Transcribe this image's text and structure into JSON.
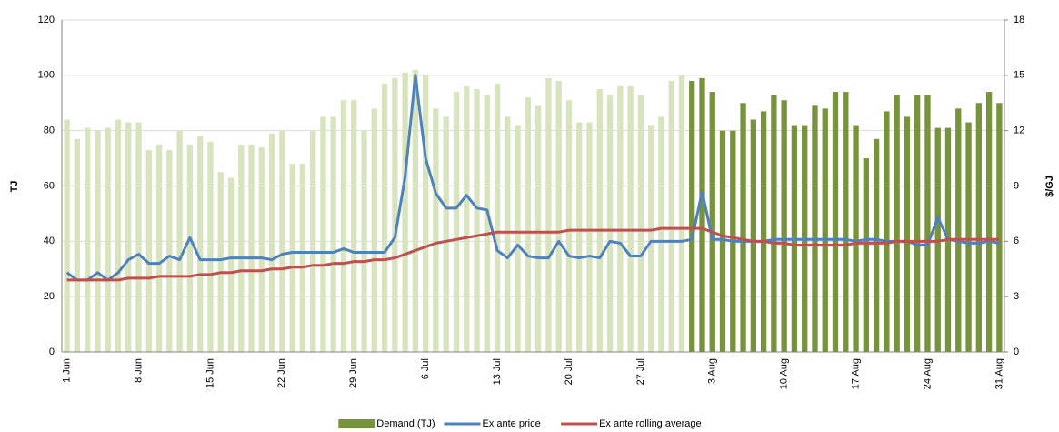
{
  "chart_data": {
    "type": "bar_line",
    "categories": [
      "1 Jun",
      null,
      null,
      null,
      null,
      null,
      null,
      "8 Jun",
      null,
      null,
      null,
      null,
      null,
      null,
      "15 Jun",
      null,
      null,
      null,
      null,
      null,
      null,
      "22 Jun",
      null,
      null,
      null,
      null,
      null,
      null,
      "29 Jun",
      null,
      null,
      null,
      null,
      null,
      null,
      "6 Jul",
      null,
      null,
      null,
      null,
      null,
      null,
      "13 Jul",
      null,
      null,
      null,
      null,
      null,
      null,
      "20 Jul",
      null,
      null,
      null,
      null,
      null,
      null,
      "27 Jul",
      null,
      null,
      null,
      null,
      null,
      null,
      "3 Aug",
      null,
      null,
      null,
      null,
      null,
      null,
      "10 Aug",
      null,
      null,
      null,
      null,
      null,
      null,
      "17 Aug",
      null,
      null,
      null,
      null,
      null,
      null,
      "24 Aug",
      null,
      null,
      null,
      null,
      null,
      null,
      "31 Aug"
    ],
    "ylabel": "TJ",
    "y2label": "$/GJ",
    "ylim": [
      0,
      120
    ],
    "yticks": [
      0,
      20,
      40,
      60,
      80,
      100,
      120
    ],
    "y2lim": [
      0,
      18
    ],
    "y2ticks": [
      0,
      3,
      6,
      9,
      12,
      15,
      18
    ],
    "grid": true,
    "legend": "bottom",
    "series": [
      {
        "name": "Demand (TJ)",
        "type": "bar",
        "color": "#77933c",
        "colors": [
          "#d7e4bd",
          "#d7e4bd",
          "#d7e4bd",
          "#d7e4bd",
          "#d7e4bd",
          "#d7e4bd",
          "#d7e4bd",
          "#d7e4bd",
          "#d7e4bd",
          "#d7e4bd",
          "#d7e4bd",
          "#d7e4bd",
          "#d7e4bd",
          "#d7e4bd",
          "#d7e4bd",
          "#d7e4bd",
          "#d7e4bd",
          "#d7e4bd",
          "#d7e4bd",
          "#d7e4bd",
          "#d7e4bd",
          "#d7e4bd",
          "#d7e4bd",
          "#d7e4bd",
          "#d7e4bd",
          "#d7e4bd",
          "#d7e4bd",
          "#d7e4bd",
          "#d7e4bd",
          "#d7e4bd",
          "#d7e4bd",
          "#d7e4bd",
          "#d7e4bd",
          "#d7e4bd",
          "#d7e4bd",
          "#d7e4bd",
          "#d7e4bd",
          "#d7e4bd",
          "#d7e4bd",
          "#d7e4bd",
          "#d7e4bd",
          "#d7e4bd",
          "#d7e4bd",
          "#d7e4bd",
          "#d7e4bd",
          "#d7e4bd",
          "#d7e4bd",
          "#d7e4bd",
          "#d7e4bd",
          "#d7e4bd",
          "#d7e4bd",
          "#d7e4bd",
          "#d7e4bd",
          "#d7e4bd",
          "#d7e4bd",
          "#d7e4bd",
          "#d7e4bd",
          "#d7e4bd",
          "#d7e4bd",
          "#d7e4bd",
          "#d7e4bd",
          "#77933c",
          "#77933c",
          "#77933c",
          "#77933c",
          "#77933c",
          "#77933c",
          "#77933c",
          "#77933c",
          "#77933c",
          "#77933c",
          "#77933c",
          "#77933c",
          "#77933c",
          "#77933c",
          "#77933c",
          "#77933c",
          "#77933c",
          "#77933c",
          "#77933c",
          "#77933c",
          "#77933c",
          "#77933c",
          "#77933c",
          "#77933c",
          "#77933c",
          "#77933c",
          "#77933c",
          "#77933c",
          "#77933c",
          "#77933c",
          "#77933c"
        ],
        "values": [
          84,
          77,
          81,
          80,
          81,
          84,
          83,
          83,
          73,
          75,
          73,
          80,
          75,
          78,
          76,
          65,
          63,
          75,
          75,
          74,
          79,
          80,
          68,
          68,
          80,
          85,
          85,
          91,
          91,
          80,
          88,
          97,
          99,
          101,
          102,
          100,
          88,
          85,
          94,
          96,
          95,
          93,
          97,
          85,
          82,
          92,
          89,
          99,
          98,
          91,
          83,
          83,
          95,
          93,
          96,
          96,
          93,
          82,
          85,
          98,
          100,
          98,
          99,
          94,
          80,
          80,
          90,
          84,
          87,
          93,
          91,
          82,
          82,
          89,
          88,
          94,
          94,
          82,
          70,
          77,
          87,
          93,
          85,
          93,
          93,
          81,
          81,
          88,
          83,
          90,
          94,
          90
        ]
      },
      {
        "name": "Ex ante price",
        "type": "line",
        "axis": "y2",
        "color": "#4f81bd",
        "values": [
          4.3,
          3.9,
          3.9,
          4.3,
          3.9,
          4.3,
          5.0,
          5.3,
          4.8,
          4.8,
          5.2,
          5.0,
          6.2,
          5.0,
          5.0,
          5.0,
          5.1,
          5.1,
          5.1,
          5.1,
          5.0,
          5.3,
          5.4,
          5.4,
          5.4,
          5.4,
          5.4,
          5.6,
          5.4,
          5.4,
          5.4,
          5.4,
          6.2,
          9.5,
          15.0,
          10.5,
          8.6,
          7.8,
          7.8,
          8.5,
          7.8,
          7.7,
          5.5,
          5.1,
          5.8,
          5.2,
          5.1,
          5.1,
          6.0,
          5.2,
          5.1,
          5.2,
          5.1,
          6.0,
          5.9,
          5.2,
          5.2,
          6.0,
          6.0,
          6.0,
          6.0,
          6.1,
          8.7,
          6.1,
          6.1,
          6.0,
          6.0,
          6.0,
          6.0,
          6.1,
          6.1,
          6.1,
          6.1,
          6.1,
          6.1,
          6.1,
          6.1,
          6.0,
          6.1,
          6.1,
          6.0,
          6.0,
          6.0,
          5.8,
          5.8,
          7.3,
          6.1,
          6.0,
          5.9,
          5.9,
          6.0,
          5.9
        ]
      },
      {
        "name": "Ex ante rolling average",
        "type": "line",
        "axis": "y2",
        "color": "#c0504d",
        "values": [
          3.9,
          3.9,
          3.9,
          3.9,
          3.9,
          3.9,
          4.0,
          4.0,
          4.0,
          4.1,
          4.1,
          4.1,
          4.1,
          4.2,
          4.2,
          4.3,
          4.3,
          4.4,
          4.4,
          4.4,
          4.5,
          4.5,
          4.6,
          4.6,
          4.7,
          4.7,
          4.8,
          4.8,
          4.9,
          4.9,
          5.0,
          5.0,
          5.1,
          5.3,
          5.5,
          5.7,
          5.9,
          6.0,
          6.1,
          6.2,
          6.3,
          6.4,
          6.5,
          6.5,
          6.5,
          6.5,
          6.5,
          6.5,
          6.5,
          6.6,
          6.6,
          6.6,
          6.6,
          6.6,
          6.6,
          6.6,
          6.6,
          6.6,
          6.7,
          6.7,
          6.7,
          6.7,
          6.7,
          6.5,
          6.3,
          6.2,
          6.1,
          6.0,
          6.0,
          5.9,
          5.9,
          5.8,
          5.8,
          5.8,
          5.8,
          5.8,
          5.8,
          5.9,
          5.9,
          5.9,
          5.9,
          6.0,
          6.0,
          6.0,
          6.0,
          6.0,
          6.1,
          6.1,
          6.1,
          6.1,
          6.1,
          6.1
        ]
      }
    ]
  }
}
